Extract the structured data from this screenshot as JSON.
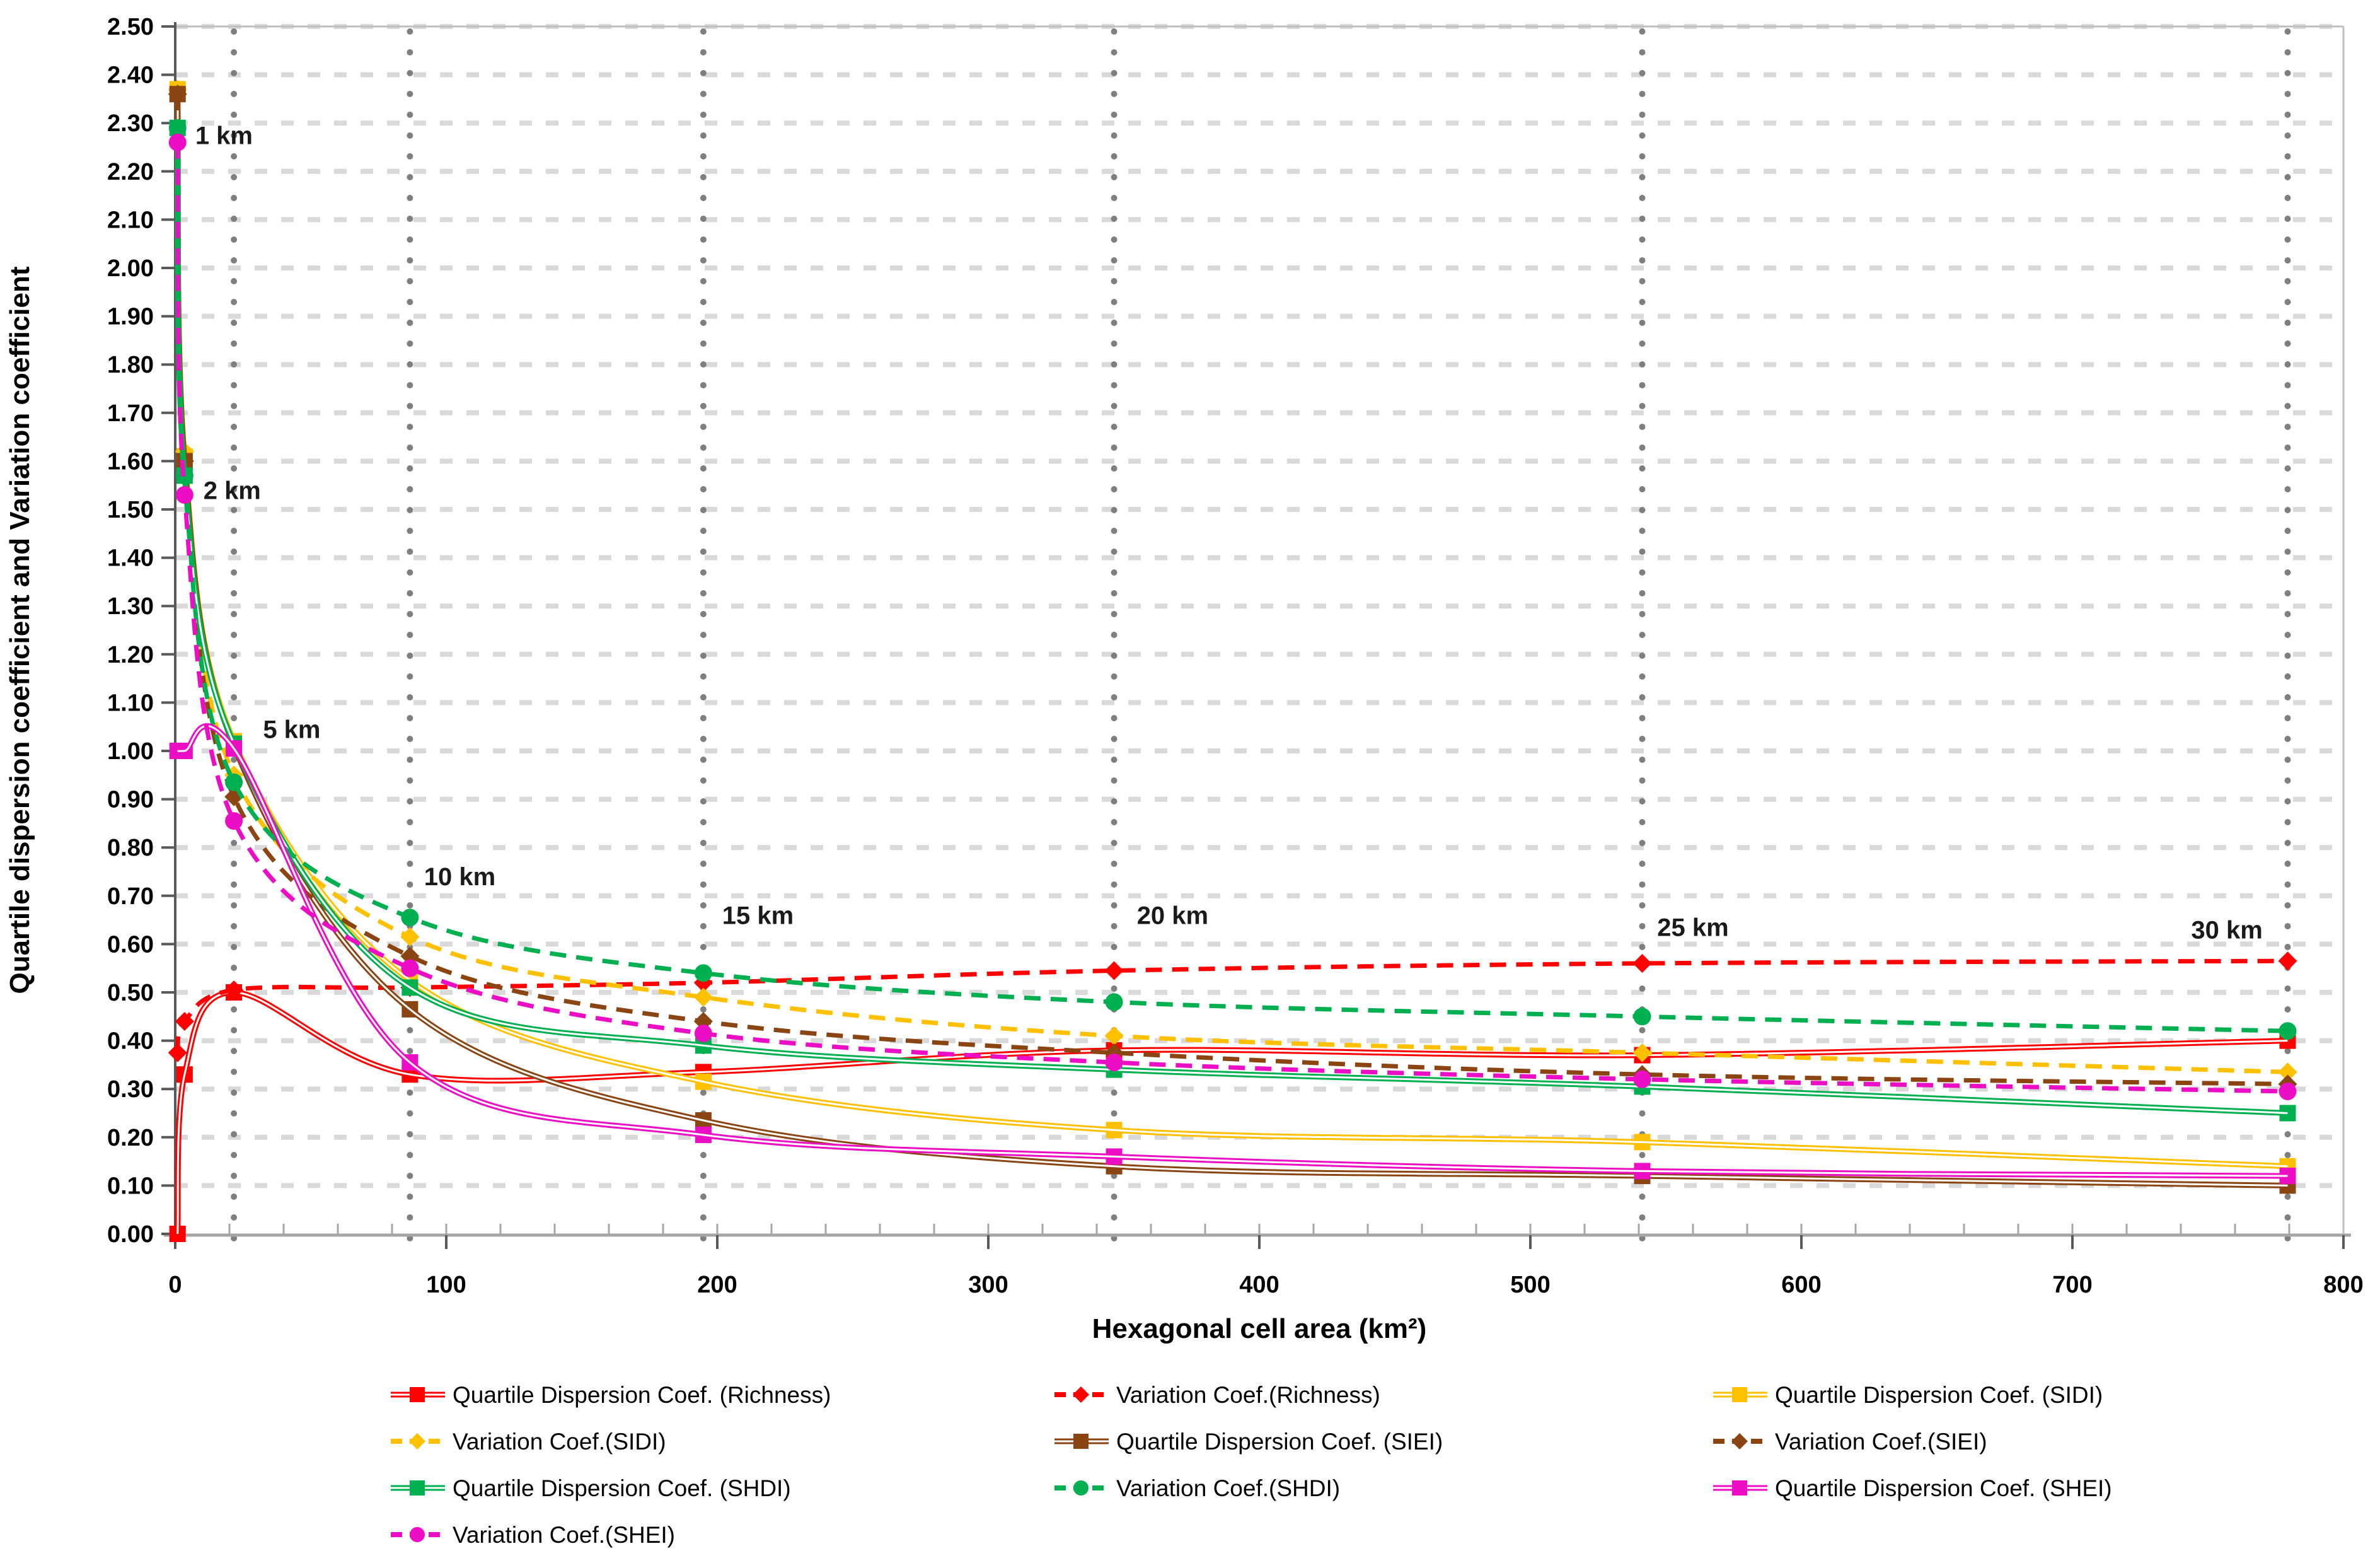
{
  "chart_data": {
    "type": "line",
    "title": "",
    "xlabel": "Hexagonal cell area (km²)",
    "ylabel": "Quartile dispersion coefficient and Variation coefficient",
    "xlim": [
      0,
      800
    ],
    "ylim": [
      0.0,
      2.5
    ],
    "grid": "horizontal light dashed; vertical dotted reference lines at hexagon sizes",
    "legend_position": "bottom, 3 columns",
    "x_tick_labels": [
      "0",
      "100",
      "200",
      "300",
      "400",
      "500",
      "600",
      "700",
      "800"
    ],
    "x_minor_tick_step": 20,
    "y_tick_labels": [
      "0.00",
      "0.10",
      "0.20",
      "0.30",
      "0.40",
      "0.50",
      "0.60",
      "0.70",
      "0.80",
      "0.90",
      "1.00",
      "1.10",
      "1.20",
      "1.30",
      "1.40",
      "1.50",
      "1.60",
      "1.70",
      "1.80",
      "1.90",
      "2.00",
      "2.10",
      "2.20",
      "2.30",
      "2.40",
      "2.50"
    ],
    "x": [
      0.87,
      3.46,
      21.65,
      86.6,
      194.86,
      346.41,
      541.27,
      779.42
    ],
    "vlines": [
      21.65,
      86.6,
      194.86,
      346.41,
      541.27,
      779.42
    ],
    "annotations": [
      {
        "text": "1 km",
        "x": 18,
        "y": 2.275
      },
      {
        "text": "2 km",
        "x": 21,
        "y": 1.54
      },
      {
        "text": "5 km",
        "x": 43,
        "y": 1.045
      },
      {
        "text": "10 km",
        "x": 105,
        "y": 0.74
      },
      {
        "text": "15 km",
        "x": 215,
        "y": 0.66
      },
      {
        "text": "20 km",
        "x": 368,
        "y": 0.66
      },
      {
        "text": "25 km",
        "x": 560,
        "y": 0.635
      },
      {
        "text": "30 km",
        "x": 757,
        "y": 0.63
      }
    ],
    "series": [
      {
        "key": "qdc-richness",
        "name": "Quartile Dispersion Coef. (Richness)",
        "color": "#FF0000",
        "line": "solid",
        "marker": "square",
        "values": [
          0.0,
          0.33,
          0.5,
          0.33,
          0.335,
          0.38,
          0.37,
          0.4
        ]
      },
      {
        "key": "vc-richness",
        "name": "Variation Coef.(Richness)",
        "color": "#FF0000",
        "line": "dashed",
        "marker": "diamond",
        "values": [
          0.375,
          0.44,
          0.505,
          0.51,
          0.52,
          0.545,
          0.56,
          0.565
        ]
      },
      {
        "key": "qdc-sidi",
        "name": "Quartile Dispersion Coef. (SIDI)",
        "color": "#FFC000",
        "line": "solid",
        "marker": "square",
        "values": [
          2.37,
          1.61,
          1.02,
          0.525,
          0.315,
          0.215,
          0.19,
          0.14
        ]
      },
      {
        "key": "vc-sidi",
        "name": "Variation Coef.(SIDI)",
        "color": "#FFC000",
        "line": "dashed",
        "marker": "diamond",
        "values": [
          2.37,
          1.62,
          0.95,
          0.615,
          0.49,
          0.41,
          0.375,
          0.335
        ]
      },
      {
        "key": "qdc-siei",
        "name": "Quartile Dispersion Coef. (SIEI)",
        "color": "#8B4513",
        "line": "solid",
        "marker": "square",
        "values": [
          2.36,
          1.6,
          1.01,
          0.465,
          0.235,
          0.14,
          0.12,
          0.1
        ]
      },
      {
        "key": "vc-siei",
        "name": "Variation Coef.(SIEI)",
        "color": "#8B4513",
        "line": "dashed",
        "marker": "diamond",
        "values": [
          2.36,
          1.6,
          0.905,
          0.575,
          0.44,
          0.375,
          0.33,
          0.31
        ]
      },
      {
        "key": "qdc-shdi",
        "name": "Quartile Dispersion Coef. (SHDI)",
        "color": "#00B050",
        "line": "solid",
        "marker": "square",
        "values": [
          2.29,
          1.57,
          1.015,
          0.51,
          0.39,
          0.34,
          0.305,
          0.25
        ]
      },
      {
        "key": "vc-shdi",
        "name": "Variation Coef.(SHDI)",
        "color": "#00B050",
        "line": "dashed",
        "marker": "circle",
        "values": [
          2.29,
          1.57,
          0.935,
          0.655,
          0.54,
          0.48,
          0.45,
          0.42
        ]
      },
      {
        "key": "qdc-shei",
        "name": "Quartile Dispersion Coef. (SHEI)",
        "color": "#EC0EC4",
        "line": "solid",
        "marker": "square",
        "values": [
          1.0,
          1.0,
          1.005,
          0.355,
          0.205,
          0.16,
          0.13,
          0.12
        ]
      },
      {
        "key": "vc-shei",
        "name": "Variation Coef.(SHEI)",
        "color": "#EC0EC4",
        "line": "dashed",
        "marker": "circle",
        "values": [
          2.26,
          1.53,
          0.855,
          0.55,
          0.415,
          0.355,
          0.32,
          0.295
        ]
      }
    ]
  },
  "colors": {
    "gridline": "#D9D9D9",
    "vline_dots": "#7F7F7F",
    "x_axis": "#A6A6A6",
    "y_axis": "#595959",
    "plot_border": "#BFBFBF",
    "text": "#000000"
  }
}
